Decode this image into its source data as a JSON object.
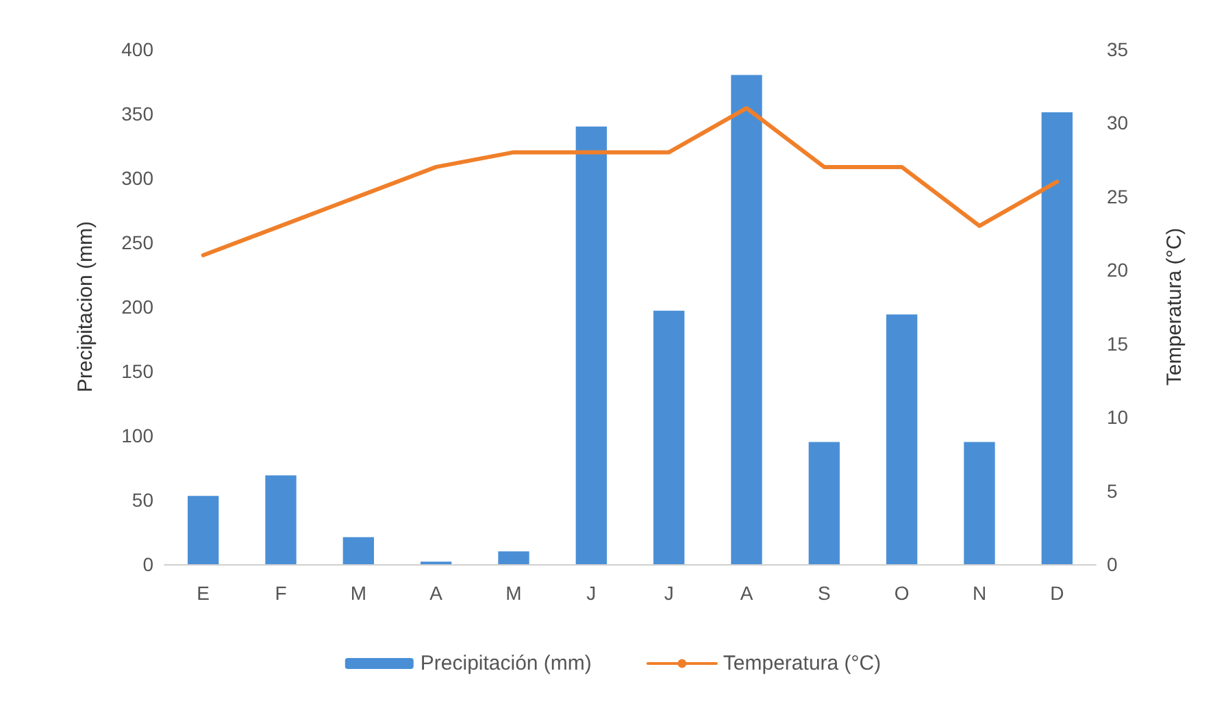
{
  "chart_data": {
    "type": "bar",
    "xlabel": null,
    "ylabel": "Precipitacion (mm)",
    "y2label": "Temperatura (°C)",
    "categories": [
      "E",
      "F",
      "M",
      "A",
      "M",
      "J",
      "J",
      "A",
      "S",
      "O",
      "N",
      "D"
    ],
    "series": [
      {
        "name": "Precipitación (mm)",
        "color": "#4a8fd6",
        "values": [
          53,
          69,
          21,
          2,
          10,
          340,
          197,
          380,
          95,
          194,
          95,
          351
        ]
      },
      {
        "name": "Temperatura (°C)",
        "type": "line",
        "axis": "y2",
        "color": "#f07f2a",
        "values": [
          21,
          23,
          25,
          27,
          28,
          28,
          28,
          31,
          27,
          27,
          23,
          26
        ]
      }
    ],
    "ylim": [
      0,
      400
    ],
    "yticks": [
      0,
      50,
      100,
      150,
      200,
      250,
      300,
      350,
      400
    ],
    "y2lim": [
      0,
      35
    ],
    "y2ticks": [
      0,
      5,
      10,
      15,
      20,
      25,
      30,
      35
    ],
    "grid": false,
    "legend": "bottom",
    "marker": "none",
    "line_style": "solid"
  }
}
